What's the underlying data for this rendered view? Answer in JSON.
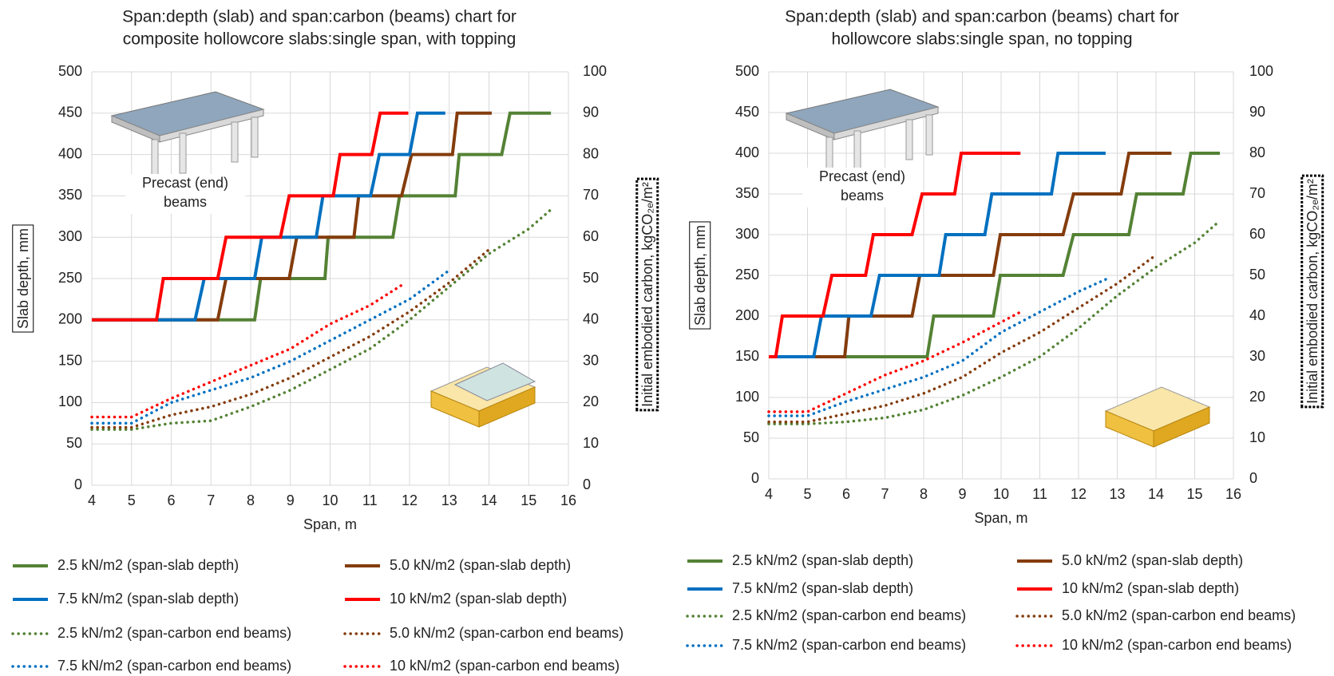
{
  "chart_data": [
    {
      "type": "line",
      "title": [
        "Span:depth (slab) and span:carbon (beams) chart for",
        "composite hollowcore slabs:single span, with topping"
      ],
      "xlabel": "Span, m",
      "ylabel": "Slab depth, mm",
      "y2label": "Initial embodied carbon, kgCO₂ₑ/m²",
      "annotation": [
        "Precast  (end)",
        "beams"
      ],
      "xlim": [
        4,
        16
      ],
      "xticks": [
        4,
        5,
        6,
        7,
        8,
        9,
        10,
        11,
        12,
        13,
        14,
        15,
        16
      ],
      "ylim": [
        0,
        500
      ],
      "yticks": [
        0,
        50,
        100,
        150,
        200,
        250,
        300,
        350,
        400,
        450,
        500
      ],
      "y2lim": [
        0,
        100
      ],
      "y2ticks": [
        0,
        10,
        20,
        30,
        40,
        50,
        60,
        70,
        80,
        90,
        100
      ],
      "grid": true,
      "series": [
        {
          "name": "2.5 kN/m2 (span-slab depth)",
          "color": "#548235",
          "dash": "solid",
          "x": [
            4,
            8.1,
            8.25,
            9.87,
            9.95,
            11.58,
            11.75,
            13.15,
            13.25,
            14.32,
            14.53,
            15.56
          ],
          "values": [
            200,
            200,
            250,
            250,
            300,
            300,
            350,
            350,
            400,
            400,
            450,
            450
          ]
        },
        {
          "name": "5.0 kN/m2 (span-slab depth)",
          "color": "#843c0c",
          "dash": "solid",
          "x": [
            4,
            7.17,
            7.38,
            8.97,
            9.16,
            10.6,
            10.72,
            11.8,
            12.05,
            13.08,
            13.2,
            14.07
          ],
          "values": [
            200,
            200,
            250,
            250,
            300,
            300,
            350,
            350,
            400,
            400,
            450,
            450
          ]
        },
        {
          "name": "7.5 kN/m2 (span-slab depth)",
          "color": "#0070c0",
          "dash": "solid",
          "x": [
            4,
            6.6,
            6.83,
            8.1,
            8.28,
            9.65,
            9.82,
            11.02,
            11.24,
            12.0,
            12.2,
            12.9
          ],
          "values": [
            200,
            200,
            250,
            250,
            300,
            300,
            350,
            350,
            400,
            400,
            450,
            450
          ]
        },
        {
          "name": "10 kN/m2 (span-slab depth)",
          "color": "#ff0000",
          "dash": "solid",
          "x": [
            4,
            5.63,
            5.8,
            7.17,
            7.38,
            8.75,
            8.97,
            10.08,
            10.25,
            11.05,
            11.26,
            11.97
          ],
          "values": [
            200,
            200,
            250,
            250,
            300,
            300,
            350,
            350,
            400,
            400,
            450,
            450
          ]
        },
        {
          "name": "2.5 kN/m2 (span-carbon end beams)",
          "color": "#548235",
          "dash": "dotted",
          "axis": "y2",
          "x": [
            4,
            5,
            6,
            7,
            8,
            9,
            10,
            11,
            12,
            13,
            14,
            15,
            15.6
          ],
          "values": [
            13.5,
            13.5,
            15,
            15.6,
            19,
            23,
            28,
            33,
            40,
            48,
            56,
            62,
            67
          ]
        },
        {
          "name": "5.0 kN/m2 (span-carbon end beams)",
          "color": "#843c0c",
          "dash": "dotted",
          "axis": "y2",
          "x": [
            4,
            5,
            6,
            7,
            8,
            9,
            10,
            11,
            12,
            13,
            14
          ],
          "values": [
            14,
            14,
            17,
            19,
            22,
            26,
            31,
            36,
            42,
            49,
            57
          ]
        },
        {
          "name": "7.5 kN/m2 (span-carbon end beams)",
          "color": "#0070c0",
          "dash": "dotted",
          "axis": "y2",
          "x": [
            4,
            5,
            6,
            7,
            8,
            9,
            10,
            11,
            12,
            13
          ],
          "values": [
            15,
            15,
            20,
            23,
            26,
            30,
            35,
            40,
            45,
            52
          ]
        },
        {
          "name": "10 kN/m2 (span-carbon end beams)",
          "color": "#ff0000",
          "dash": "dotted",
          "axis": "y2",
          "x": [
            4,
            5,
            6,
            7,
            8,
            9,
            10,
            11,
            11.9
          ],
          "values": [
            16.5,
            16.5,
            21,
            25,
            29,
            33,
            39,
            43.5,
            49
          ]
        }
      ]
    },
    {
      "type": "line",
      "title": [
        "Span:depth (slab) and span:carbon (beams) chart for",
        "hollowcore slabs:single span, no topping"
      ],
      "xlabel": "Span, m",
      "ylabel": "Slab depth, mm",
      "y2label": "Initial embodied carbon, kgCO₂ₑ/m²",
      "annotation": [
        "Precast (end)",
        "beams"
      ],
      "xlim": [
        4,
        16
      ],
      "xticks": [
        4,
        5,
        6,
        7,
        8,
        9,
        10,
        11,
        12,
        13,
        14,
        15,
        16
      ],
      "ylim": [
        0,
        500
      ],
      "yticks": [
        0,
        50,
        100,
        150,
        200,
        250,
        300,
        350,
        400,
        450,
        500
      ],
      "y2lim": [
        0,
        100
      ],
      "y2ticks": [
        0,
        10,
        20,
        30,
        40,
        50,
        60,
        70,
        80,
        90,
        100
      ],
      "grid": true,
      "series": [
        {
          "name": "2.5 kN/m2 (span-slab depth)",
          "color": "#548235",
          "dash": "solid",
          "x": [
            4.09,
            8.09,
            8.26,
            9.8,
            9.98,
            11.6,
            11.87,
            13.3,
            13.5,
            14.7,
            14.9,
            15.65
          ],
          "values": [
            150,
            150,
            200,
            200,
            250,
            250,
            300,
            300,
            350,
            350,
            400,
            400
          ]
        },
        {
          "name": "5.0 kN/m2 (span-slab depth)",
          "color": "#843c0c",
          "dash": "solid",
          "x": [
            4,
            5.96,
            6.07,
            7.7,
            7.9,
            9.8,
            9.98,
            11.6,
            11.87,
            13.1,
            13.3,
            14.4
          ],
          "values": [
            150,
            150,
            200,
            200,
            250,
            250,
            300,
            300,
            350,
            350,
            400,
            400
          ]
        },
        {
          "name": "7.5 kN/m2 (span-slab depth)",
          "color": "#0070c0",
          "dash": "solid",
          "x": [
            4,
            5.16,
            5.36,
            6.64,
            6.86,
            8.4,
            8.57,
            9.58,
            9.76,
            11.3,
            11.47,
            12.7
          ],
          "values": [
            150,
            150,
            200,
            200,
            250,
            250,
            300,
            300,
            350,
            350,
            400,
            400
          ]
        },
        {
          "name": "10 kN/m2 (span-slab depth)",
          "color": "#ff0000",
          "dash": "solid",
          "x": [
            4,
            4.18,
            4.35,
            5.4,
            5.63,
            6.5,
            6.7,
            7.7,
            7.96,
            8.8,
            8.97,
            9.6,
            9.8,
            10.5
          ],
          "values": [
            150,
            150,
            200,
            200,
            250,
            250,
            300,
            300,
            350,
            350,
            400,
            400,
            400,
            400
          ]
        },
        {
          "name": "2.5 kN/m2 (span-carbon end beams)",
          "color": "#548235",
          "dash": "dotted",
          "axis": "y2",
          "x": [
            4,
            5,
            6,
            7,
            8,
            9,
            10,
            11,
            12,
            13,
            14,
            15,
            15.6
          ],
          "values": [
            13.5,
            13.5,
            14,
            15,
            17,
            20.5,
            25,
            30,
            37,
            45,
            52,
            58,
            63
          ]
        },
        {
          "name": "5.0 kN/m2 (span-carbon end beams)",
          "color": "#843c0c",
          "dash": "dotted",
          "axis": "y2",
          "x": [
            4,
            5,
            6,
            7,
            8,
            9,
            10,
            11,
            12,
            13,
            14
          ],
          "values": [
            14,
            14,
            16,
            18,
            21,
            25,
            31,
            36,
            42,
            48,
            55
          ]
        },
        {
          "name": "7.5 kN/m2 (span-carbon end beams)",
          "color": "#0070c0",
          "dash": "dotted",
          "axis": "y2",
          "x": [
            4,
            5,
            6,
            7,
            8,
            9,
            10,
            11,
            12,
            12.7
          ],
          "values": [
            15.5,
            15.5,
            19,
            22,
            25,
            29,
            36,
            41,
            46,
            49
          ]
        },
        {
          "name": "10 kN/m2 (span-carbon end beams)",
          "color": "#ff0000",
          "dash": "dotted",
          "axis": "y2",
          "x": [
            4,
            5,
            6,
            7,
            8,
            9,
            10,
            10.5
          ],
          "values": [
            16.5,
            16.5,
            21,
            25.5,
            29,
            33.5,
            38.5,
            41
          ]
        }
      ]
    }
  ]
}
